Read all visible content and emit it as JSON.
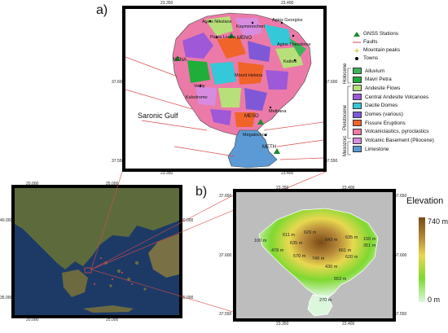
{
  "panel_a": {
    "label": "a)",
    "x_ticks": [
      "23.350",
      "23.400"
    ],
    "y_ticks": [
      "37.600",
      "37.550"
    ],
    "gulf_label": "Saronic Gulf",
    "places": [
      "Agios Nikolaos",
      "Kaymenochori",
      "Agios Georgios",
      "Palea Loutra",
      "Vathy",
      "Kalloni",
      "Agios Theodoros",
      "Kalodromo",
      "Mount Helona",
      "Kypseli",
      "Mavri Petra",
      "Methana",
      "Megalochori",
      "Ortonos"
    ],
    "stations": [
      "MENO",
      "MTNA",
      "MESO",
      "METH"
    ]
  },
  "panel_b": {
    "label": "b)",
    "x_ticks": [
      "23.350",
      "23.400"
    ],
    "y_ticks": [
      "37.650",
      "37.600",
      "37.550"
    ],
    "elevation_labels": [
      "611 m",
      "629 m",
      "635 m",
      "643 m",
      "635 m",
      "661 m",
      "740 m",
      "478 m",
      "570 m",
      "620 m",
      "430 m",
      "351 m",
      "100 m",
      "150 m",
      "270 m",
      "553 m"
    ]
  },
  "overview": {
    "x_ticks_top": [
      "20.000",
      "25.000"
    ],
    "x_ticks_bottom": [
      "20.000",
      "25.000"
    ],
    "y_ticks": [
      "40.000",
      "35.000"
    ]
  },
  "legend": {
    "symbols": [
      {
        "label": "GNSS Stations",
        "icon": "triangle-icon",
        "color": "#1a8a2a"
      },
      {
        "label": "Faults",
        "icon": "line-icon",
        "color": "#d94a4a"
      },
      {
        "label": "Mountain peaks",
        "icon": "plus-icon",
        "color": "#c8a800"
      },
      {
        "label": "Towns",
        "icon": "dot-icon",
        "color": "#000000"
      }
    ],
    "units": [
      {
        "label": "Alluvium",
        "color": "#3cb45a"
      },
      {
        "label": "Mavri Petra",
        "color": "#1fae3a"
      },
      {
        "label": "Andesite Flows",
        "color": "#b8e07a"
      },
      {
        "label": "Central Andesite Volcanoes",
        "color": "#9e58d8"
      },
      {
        "label": "Dacite Domes",
        "color": "#35c8d8"
      },
      {
        "label": "Domes (various)",
        "color": "#7f58d8"
      },
      {
        "label": "Fissure Eruptions",
        "color": "#f0642a"
      },
      {
        "label": "Volcaniclastics, pyroclastics",
        "color": "#ec7aa8"
      },
      {
        "label": "Volcanic Basement (Pliocene)",
        "color": "#d78ce0"
      },
      {
        "label": "Limestone",
        "color": "#5b9ad4"
      }
    ],
    "groups": [
      "Holocene",
      "Pleistocene",
      "Mesozoic"
    ]
  },
  "elevation": {
    "title": "Elevation",
    "max": "740 m",
    "min": "0 m"
  }
}
